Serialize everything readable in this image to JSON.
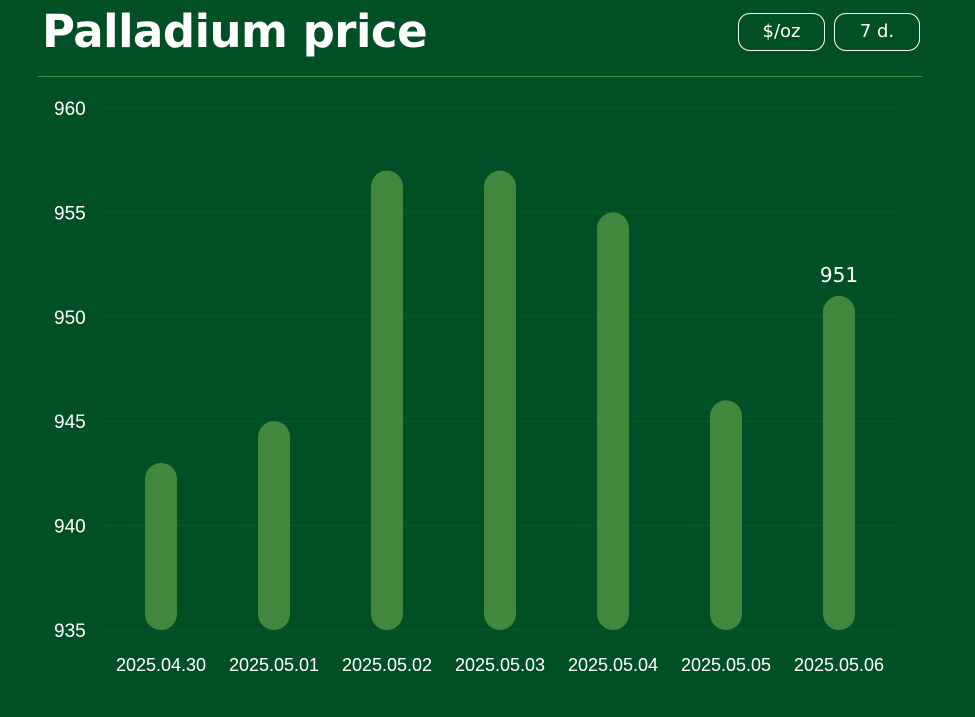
{
  "header": {
    "title": "Palladium price",
    "unit_label": "$/oz",
    "range_label": "7 d."
  },
  "colors": {
    "background": "#014f24",
    "bar": "#43873f",
    "grid": "#0a5a2c",
    "text": "#ffffff"
  },
  "chart_data": {
    "type": "bar",
    "title": "Palladium price",
    "xlabel": "",
    "ylabel": "",
    "categories": [
      "2025.04.30",
      "2025.05.01",
      "2025.05.02",
      "2025.05.03",
      "2025.05.04",
      "2025.05.05",
      "2025.05.06"
    ],
    "values": [
      943,
      945,
      957,
      957,
      955,
      946,
      951
    ],
    "ylim": [
      935,
      960
    ],
    "yticks": [
      935,
      940,
      945,
      950,
      955,
      960
    ],
    "grid": true,
    "data_labels": [
      {
        "category": "2025.05.06",
        "text": "951"
      }
    ]
  }
}
